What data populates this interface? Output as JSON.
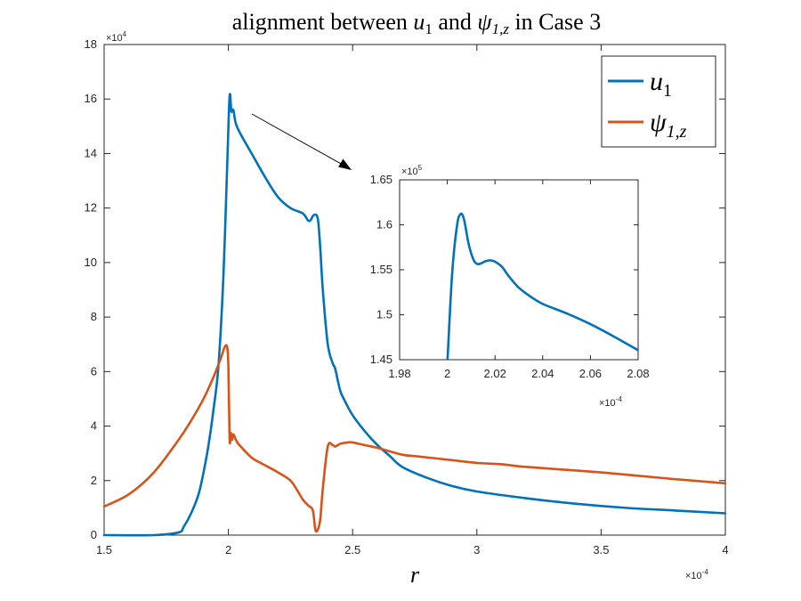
{
  "chart_data": {
    "type": "line",
    "title": "alignment between u_1 and ψ_{1,z} in Case 3",
    "title_parts": {
      "prefix": "alignment between ",
      "u_base": "u",
      "u_sub": "1",
      "and": " and ",
      "psi_base": "ψ",
      "psi_sub": "1,z",
      "suffix": " in Case 3"
    },
    "xlabel": "r",
    "ylabel": "",
    "x_multiplier_label": "×10",
    "x_multiplier_exp": "-4",
    "y_multiplier_label": "×10",
    "y_multiplier_exp": "4",
    "xlim": [
      1.5,
      4
    ],
    "ylim": [
      0,
      18
    ],
    "x_ticks": [
      "1.5",
      "2",
      "2.5",
      "3",
      "3.5",
      "4"
    ],
    "y_ticks": [
      "0",
      "2",
      "4",
      "6",
      "8",
      "10",
      "12",
      "14",
      "16",
      "18"
    ],
    "grid": false,
    "legend_position": "top-right",
    "colors": {
      "u1": "#0072BD",
      "psi": "#D95319",
      "axis": "#262626",
      "arrow": "#000000"
    },
    "series": [
      {
        "name": "u_1",
        "legend_base": "u",
        "legend_sub": "1",
        "x": [
          1.5,
          1.7,
          1.8,
          1.82,
          1.85,
          1.88,
          1.9,
          1.92,
          1.94,
          1.96,
          1.98,
          1.995,
          2.005,
          2.012,
          2.02,
          2.03,
          2.05,
          2.1,
          2.15,
          2.2,
          2.25,
          2.3,
          2.32,
          2.33,
          2.345,
          2.36,
          2.37,
          2.38,
          2.4,
          2.42,
          2.43,
          2.45,
          2.47,
          2.5,
          2.55,
          2.6,
          2.65,
          2.7,
          2.8,
          2.9,
          3.0,
          3.2,
          3.4,
          3.6,
          3.8,
          4.0
        ],
        "y": [
          0.0,
          0.0,
          0.1,
          0.3,
          0.8,
          1.5,
          2.3,
          3.3,
          4.6,
          6.2,
          9.5,
          13.5,
          16.1,
          15.55,
          15.6,
          15.1,
          14.7,
          13.9,
          13.1,
          12.4,
          12.0,
          11.8,
          11.55,
          11.55,
          11.75,
          11.6,
          10.5,
          9.0,
          7.0,
          6.3,
          6.1,
          5.3,
          4.9,
          4.4,
          3.8,
          3.3,
          2.9,
          2.5,
          2.1,
          1.8,
          1.6,
          1.35,
          1.15,
          1.0,
          0.9,
          0.8
        ]
      },
      {
        "name": "ψ_{1,z}",
        "legend_base": "ψ",
        "legend_sub": "1,z",
        "x": [
          1.5,
          1.6,
          1.7,
          1.8,
          1.85,
          1.9,
          1.94,
          1.97,
          1.985,
          1.995,
          2.0,
          2.005,
          2.01,
          2.015,
          2.02,
          2.03,
          2.04,
          2.05,
          2.07,
          2.1,
          2.15,
          2.2,
          2.25,
          2.28,
          2.3,
          2.32,
          2.34,
          2.35,
          2.36,
          2.37,
          2.38,
          2.4,
          2.42,
          2.43,
          2.45,
          2.48,
          2.5,
          2.55,
          2.6,
          2.7,
          2.75,
          2.8,
          2.9,
          3.0,
          3.1,
          3.2,
          3.5,
          3.8,
          4.0
        ],
        "y": [
          1.05,
          1.5,
          2.3,
          3.5,
          4.2,
          5.0,
          5.8,
          6.5,
          6.9,
          6.9,
          6.2,
          3.5,
          3.75,
          3.5,
          3.7,
          3.5,
          3.35,
          3.25,
          3.05,
          2.8,
          2.55,
          2.3,
          2.0,
          1.6,
          1.3,
          1.1,
          0.9,
          0.2,
          0.2,
          0.6,
          1.7,
          3.25,
          3.3,
          3.25,
          3.35,
          3.4,
          3.4,
          3.3,
          3.2,
          2.95,
          2.9,
          2.85,
          2.75,
          2.65,
          2.6,
          2.5,
          2.3,
          2.05,
          1.9
        ]
      }
    ],
    "inset": {
      "xlim": [
        1.98,
        2.08
      ],
      "ylim": [
        1.45,
        1.65
      ],
      "x_ticks": [
        "1.98",
        "2",
        "2.02",
        "2.04",
        "2.06",
        "2.08"
      ],
      "y_ticks": [
        "1.45",
        "1.5",
        "1.55",
        "1.6",
        "1.65"
      ],
      "x_multiplier_label": "×10",
      "x_multiplier_exp": "-4",
      "y_multiplier_label": "×10",
      "y_multiplier_exp": "5",
      "series": [
        {
          "name": "u_1",
          "x": [
            2.0,
            2.002,
            2.004,
            2.0055,
            2.007,
            2.009,
            2.011,
            2.0125,
            2.014,
            2.016,
            2.018,
            2.02,
            2.023,
            2.026,
            2.03,
            2.035,
            2.04,
            2.05,
            2.06,
            2.07,
            2.08
          ],
          "y": [
            1.445,
            1.545,
            1.598,
            1.612,
            1.606,
            1.578,
            1.561,
            1.5565,
            1.557,
            1.5595,
            1.5605,
            1.559,
            1.553,
            1.542,
            1.53,
            1.52,
            1.512,
            1.5015,
            1.4895,
            1.4755,
            1.4605
          ]
        }
      ]
    }
  }
}
